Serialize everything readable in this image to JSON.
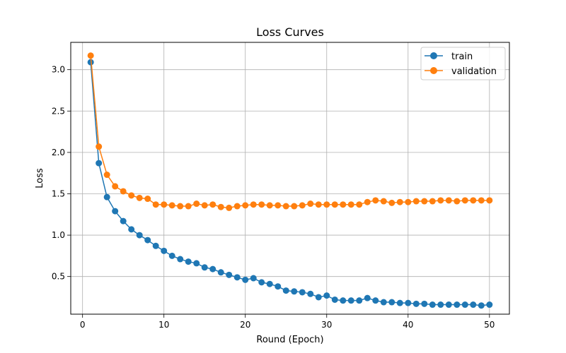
{
  "chart_data": {
    "type": "line",
    "title": "Loss Curves",
    "xlabel": "Round (Epoch)",
    "ylabel": "Loss",
    "xlim": [
      -1.45,
      52.45
    ],
    "ylim": [
      0.045,
      3.33
    ],
    "x_ticks": [
      0,
      10,
      20,
      30,
      40,
      50
    ],
    "y_ticks": [
      0.5,
      1.0,
      1.5,
      2.0,
      2.5,
      3.0
    ],
    "x_tick_labels": [
      "0",
      "10",
      "20",
      "30",
      "40",
      "50"
    ],
    "y_tick_labels": [
      "0.5",
      "1.0",
      "1.5",
      "2.0",
      "2.5",
      "3.0"
    ],
    "grid": true,
    "legend_position": "top-right",
    "x": [
      1,
      2,
      3,
      4,
      5,
      6,
      7,
      8,
      9,
      10,
      11,
      12,
      13,
      14,
      15,
      16,
      17,
      18,
      19,
      20,
      21,
      22,
      23,
      24,
      25,
      26,
      27,
      28,
      29,
      30,
      31,
      32,
      33,
      34,
      35,
      36,
      37,
      38,
      39,
      40,
      41,
      42,
      43,
      44,
      45,
      46,
      47,
      48,
      49,
      50
    ],
    "series": [
      {
        "name": "train",
        "color": "#1f77b4",
        "values": [
          3.09,
          1.87,
          1.46,
          1.29,
          1.17,
          1.07,
          1.0,
          0.94,
          0.87,
          0.81,
          0.75,
          0.71,
          0.68,
          0.66,
          0.61,
          0.59,
          0.55,
          0.52,
          0.49,
          0.46,
          0.48,
          0.43,
          0.41,
          0.38,
          0.33,
          0.32,
          0.31,
          0.29,
          0.25,
          0.27,
          0.22,
          0.21,
          0.21,
          0.21,
          0.24,
          0.21,
          0.19,
          0.19,
          0.18,
          0.18,
          0.17,
          0.17,
          0.16,
          0.16,
          0.16,
          0.16,
          0.16,
          0.16,
          0.15,
          0.16
        ]
      },
      {
        "name": "validation",
        "color": "#ff7f0e",
        "values": [
          3.17,
          2.07,
          1.73,
          1.59,
          1.53,
          1.48,
          1.45,
          1.44,
          1.37,
          1.37,
          1.36,
          1.35,
          1.35,
          1.38,
          1.36,
          1.37,
          1.34,
          1.33,
          1.35,
          1.36,
          1.37,
          1.37,
          1.36,
          1.36,
          1.35,
          1.35,
          1.36,
          1.38,
          1.37,
          1.37,
          1.37,
          1.37,
          1.37,
          1.37,
          1.4,
          1.42,
          1.41,
          1.39,
          1.4,
          1.4,
          1.41,
          1.41,
          1.41,
          1.42,
          1.42,
          1.41,
          1.42,
          1.42,
          1.42,
          1.42
        ]
      }
    ]
  }
}
